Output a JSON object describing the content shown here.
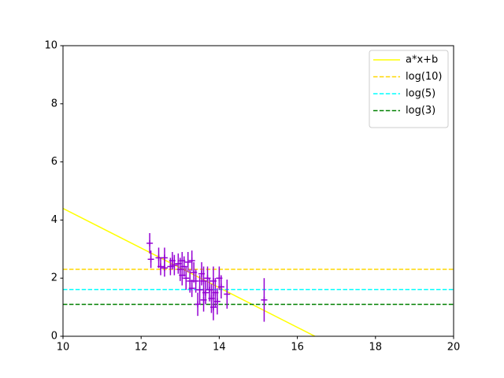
{
  "chart_data": {
    "type": "scatter",
    "xlim": [
      10,
      20
    ],
    "xticks": [
      10,
      12,
      14,
      16,
      18,
      20
    ],
    "ylim": [
      0,
      10
    ],
    "yticks": [
      0,
      2,
      4,
      6,
      8,
      10
    ],
    "legend": "upper right",
    "lines": [
      {
        "name": "a*x+b",
        "color": "#ffff00",
        "dashed": false,
        "x": [
          10,
          16.45
        ],
        "values": [
          4.4,
          0
        ]
      },
      {
        "name": "log(10)",
        "color": "#ffd700",
        "dashed": true,
        "x": [
          10,
          20
        ],
        "values": [
          2.303,
          2.303
        ]
      },
      {
        "name": "log(5)",
        "color": "#00ffff",
        "dashed": true,
        "x": [
          10,
          20
        ],
        "values": [
          1.609,
          1.609
        ]
      },
      {
        "name": "log(3)",
        "color": "#008000",
        "dashed": true,
        "x": [
          10,
          20
        ],
        "values": [
          1.099,
          1.099
        ]
      }
    ],
    "points": {
      "color": "#9400d3",
      "x": [
        12.22,
        12.25,
        12.45,
        12.5,
        12.6,
        12.6,
        12.75,
        12.8,
        12.85,
        12.95,
        13.0,
        13.05,
        13.05,
        13.1,
        13.15,
        13.2,
        13.25,
        13.3,
        13.3,
        13.35,
        13.4,
        13.45,
        13.5,
        13.55,
        13.6,
        13.6,
        13.65,
        13.7,
        13.75,
        13.8,
        13.85,
        13.85,
        13.9,
        13.95,
        14.0,
        14.05,
        14.2,
        15.15
      ],
      "values": [
        3.2,
        2.65,
        2.7,
        2.4,
        2.7,
        2.35,
        2.4,
        2.6,
        2.45,
        2.5,
        2.3,
        2.6,
        2.1,
        2.4,
        2.0,
        2.55,
        1.9,
        2.6,
        1.65,
        2.2,
        1.9,
        1.1,
        1.6,
        2.15,
        1.25,
        1.9,
        1.5,
        2.0,
        1.6,
        1.3,
        1.0,
        1.9,
        1.5,
        1.2,
        2.0,
        1.7,
        1.45,
        1.25
      ],
      "errors": [
        0.35,
        0.3,
        0.35,
        0.3,
        0.35,
        0.3,
        0.3,
        0.3,
        0.35,
        0.35,
        0.4,
        0.3,
        0.35,
        0.35,
        0.4,
        0.35,
        0.4,
        0.35,
        0.3,
        0.35,
        0.4,
        0.4,
        0.5,
        0.4,
        0.4,
        0.5,
        0.4,
        0.4,
        0.4,
        0.5,
        0.45,
        0.5,
        0.5,
        0.45,
        0.4,
        0.4,
        0.5,
        0.75
      ]
    }
  }
}
